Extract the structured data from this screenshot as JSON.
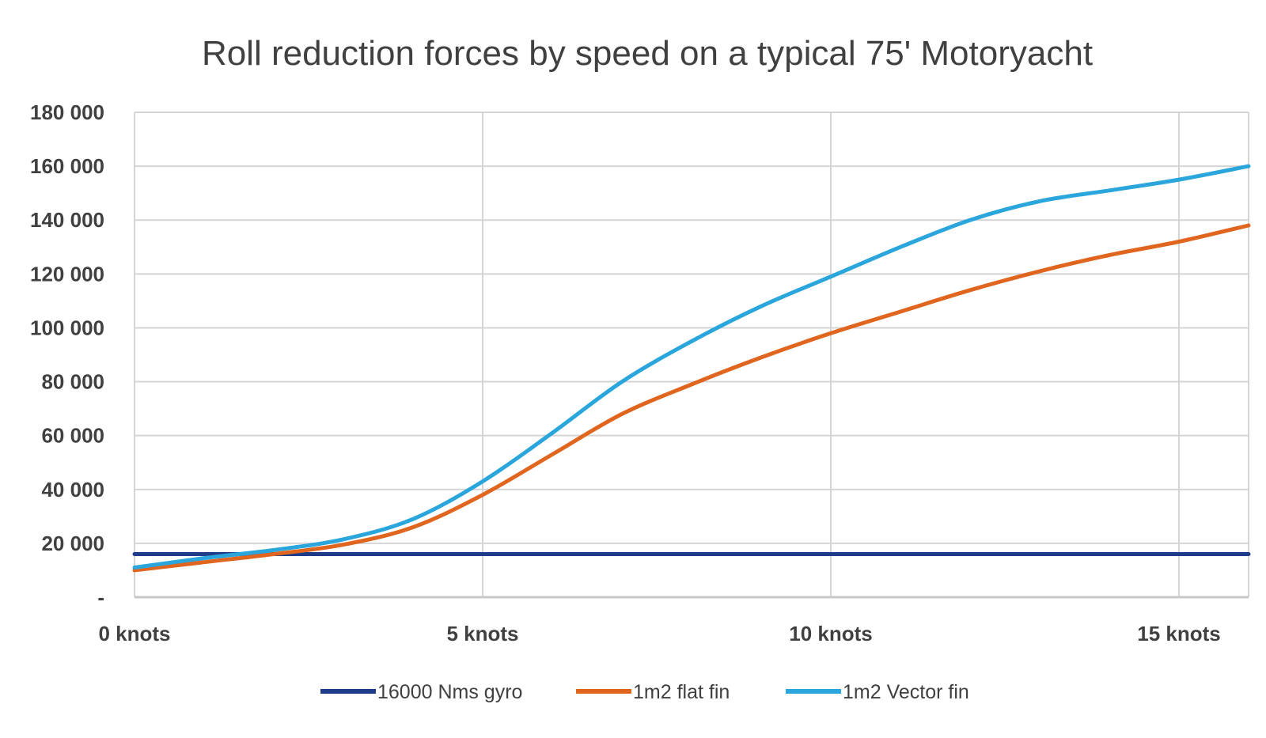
{
  "chart_data": {
    "type": "line",
    "title": "Roll reduction forces by speed on a typical 75' Motoryacht",
    "xlabel": "",
    "ylabel": "",
    "x": [
      0,
      1,
      2,
      3,
      4,
      5,
      6,
      7,
      8,
      9,
      10,
      11,
      12,
      13,
      14,
      15,
      16
    ],
    "xlim": [
      0,
      16
    ],
    "ylim": [
      0,
      180000
    ],
    "x_ticks": [
      {
        "value": 0,
        "label": "0 knots"
      },
      {
        "value": 5,
        "label": "5 knots"
      },
      {
        "value": 10,
        "label": "10 knots"
      },
      {
        "value": 15,
        "label": "15 knots"
      }
    ],
    "y_ticks": [
      {
        "value": 0,
        "label": "-"
      },
      {
        "value": 20000,
        "label": "20 000"
      },
      {
        "value": 40000,
        "label": "40 000"
      },
      {
        "value": 60000,
        "label": "60 000"
      },
      {
        "value": 80000,
        "label": "80 000"
      },
      {
        "value": 100000,
        "label": "100 000"
      },
      {
        "value": 120000,
        "label": "120 000"
      },
      {
        "value": 140000,
        "label": "140 000"
      },
      {
        "value": 160000,
        "label": "160 000"
      },
      {
        "value": 180000,
        "label": "180 000"
      }
    ],
    "grid": true,
    "legend_position": "bottom",
    "series": [
      {
        "name": "16000 Nms gyro",
        "color": "#1f3c88",
        "values": [
          16000,
          16000,
          16000,
          16000,
          16000,
          16000,
          16000,
          16000,
          16000,
          16000,
          16000,
          16000,
          16000,
          16000,
          16000,
          16000,
          16000
        ]
      },
      {
        "name": "1m2 flat fin",
        "color": "#e0661f",
        "values": [
          10000,
          13000,
          16000,
          19500,
          26000,
          38000,
          53000,
          68000,
          79000,
          89000,
          98000,
          106000,
          114000,
          121000,
          127000,
          132000,
          138000
        ]
      },
      {
        "name": "1m2 Vector fin",
        "color": "#2aa6dc",
        "values": [
          11000,
          14500,
          17500,
          21500,
          29000,
          43000,
          61000,
          80000,
          95000,
          108000,
          119000,
          130000,
          140000,
          147000,
          151000,
          155000,
          160000
        ]
      }
    ]
  }
}
